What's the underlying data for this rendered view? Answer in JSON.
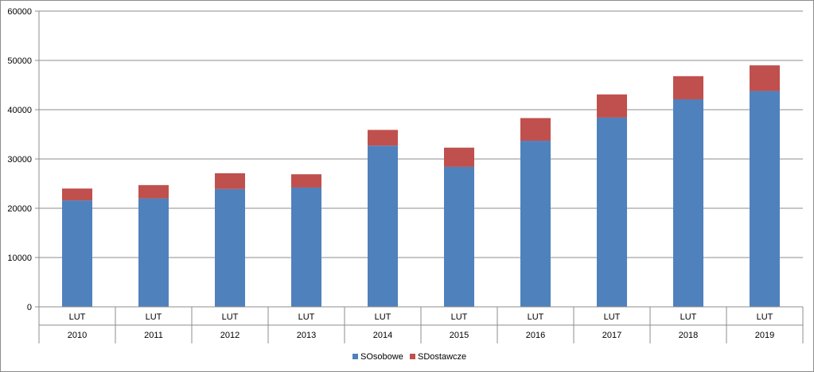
{
  "chart_data": {
    "type": "bar",
    "stacked": true,
    "categories": [
      {
        "month": "LUT",
        "year": "2010"
      },
      {
        "month": "LUT",
        "year": "2011"
      },
      {
        "month": "LUT",
        "year": "2012"
      },
      {
        "month": "LUT",
        "year": "2013"
      },
      {
        "month": "LUT",
        "year": "2014"
      },
      {
        "month": "LUT",
        "year": "2015"
      },
      {
        "month": "LUT",
        "year": "2016"
      },
      {
        "month": "LUT",
        "year": "2017"
      },
      {
        "month": "LUT",
        "year": "2018"
      },
      {
        "month": "LUT",
        "year": "2019"
      }
    ],
    "series": [
      {
        "name": "SOsobowe",
        "color": "#4f81bd",
        "values": [
          21600,
          22000,
          23900,
          24200,
          32700,
          28400,
          33700,
          38400,
          42100,
          43800
        ]
      },
      {
        "name": "SDostawcze",
        "color": "#c0504d",
        "values": [
          2400,
          2700,
          3200,
          2700,
          3200,
          3900,
          4600,
          4700,
          4700,
          5200
        ]
      }
    ],
    "ylim": [
      0,
      60000
    ],
    "yticks": [
      "0",
      "10000",
      "20000",
      "30000",
      "40000",
      "50000",
      "60000"
    ],
    "grid": true,
    "legend_position": "bottom"
  }
}
